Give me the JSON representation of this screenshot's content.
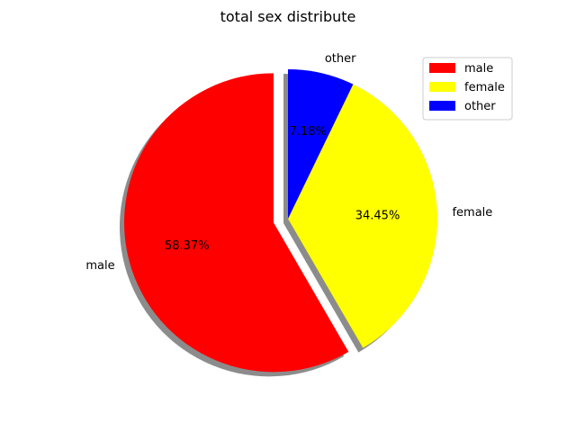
{
  "chart_data": {
    "type": "pie",
    "title": "total sex distribute",
    "categories": [
      "male",
      "female",
      "other"
    ],
    "values": [
      58.37,
      34.45,
      7.18
    ],
    "value_labels": [
      "58.37%",
      "34.45%",
      "7.18%"
    ],
    "colors": [
      "#ff0000",
      "#ffff00",
      "#0000ff"
    ],
    "explode": [
      0.1,
      0,
      0
    ],
    "shadow": true,
    "start_angle_deg": 90,
    "direction": "counterclockwise",
    "legend": {
      "position": "top-right",
      "entries": [
        "male",
        "female",
        "other"
      ]
    }
  }
}
